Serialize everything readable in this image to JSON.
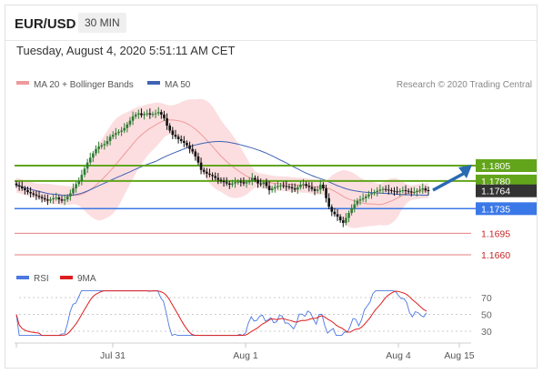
{
  "header": {
    "pair": "EUR/USD",
    "timeframe": "30 MIN",
    "datetime": "Tuesday, August 4, 2020 5:51:11 AM CET"
  },
  "legend": {
    "ma20_bb": "MA 20 + Bollinger Bands",
    "ma50": "MA 50",
    "credit": "Research © 2020 Trading Central",
    "rsi": "RSI",
    "ma9": "9MA"
  },
  "colors": {
    "up_candle": "#2e7d32",
    "down_candle": "#111111",
    "bollinger_fill": "#fbd3d6",
    "ma20": "#ef9a9a",
    "ma50": "#3f63b5",
    "resistance": "#62a51b",
    "support": "#3b78e7",
    "target": "#e05555",
    "current": "#333333",
    "arrow": "#2a6ab1",
    "rsi_line": "#4a78e0",
    "rsi_ma": "#dd1e1e"
  },
  "chart_data": [
    {
      "type": "candlestick",
      "title": "EUR/USD 30 MIN",
      "x_ticks": [
        "Jul 31",
        "Aug 1",
        "Aug 4",
        "Aug 15"
      ],
      "price_levels": [
        {
          "label": "1.1805",
          "value": 1.1805,
          "kind": "resistance"
        },
        {
          "label": "1.1780",
          "value": 1.178,
          "kind": "resistance"
        },
        {
          "label": "1.1764",
          "value": 1.1764,
          "kind": "current"
        },
        {
          "label": "1.1735",
          "value": 1.1735,
          "kind": "support"
        },
        {
          "label": "1.1695",
          "value": 1.1695,
          "kind": "target"
        },
        {
          "label": "1.1660",
          "value": 1.166,
          "kind": "target"
        }
      ],
      "ylim": [
        1.164,
        1.1905
      ],
      "closes": [
        1.1773,
        1.1771,
        1.1768,
        1.1765,
        1.1762,
        1.176,
        1.1758,
        1.1756,
        1.1754,
        1.1752,
        1.175,
        1.1748,
        1.175,
        1.1752,
        1.1753,
        1.175,
        1.1748,
        1.175,
        1.1755,
        1.176,
        1.1768,
        1.1775,
        1.178,
        1.179,
        1.18,
        1.181,
        1.1818,
        1.1825,
        1.1832,
        1.1836,
        1.1838,
        1.184,
        1.1845,
        1.1852,
        1.1855,
        1.1858,
        1.186,
        1.1862,
        1.1866,
        1.1872,
        1.1878,
        1.1885,
        1.1888,
        1.189,
        1.1887,
        1.1889,
        1.189,
        1.1888,
        1.1889,
        1.189,
        1.1892,
        1.1888,
        1.1882,
        1.187,
        1.1862,
        1.1855,
        1.1852,
        1.1848,
        1.1845,
        1.1842,
        1.1838,
        1.1832,
        1.1828,
        1.182,
        1.181,
        1.1798,
        1.1795,
        1.1792,
        1.179,
        1.1788,
        1.1785,
        1.1782,
        1.178,
        1.1778,
        1.1776,
        1.1774,
        1.1776,
        1.1778,
        1.1779,
        1.1778,
        1.1776,
        1.1778,
        1.178,
        1.1785,
        1.1782,
        1.1776,
        1.1775,
        1.1778,
        1.1772,
        1.1765,
        1.1768,
        1.177,
        1.1772,
        1.1773,
        1.1772,
        1.1771,
        1.177,
        1.1768,
        1.1766,
        1.177,
        1.1774,
        1.1775,
        1.1772,
        1.177,
        1.1767,
        1.1764,
        1.1766,
        1.1774,
        1.1768,
        1.1752,
        1.1738,
        1.173,
        1.1726,
        1.1722,
        1.1716,
        1.1712,
        1.172,
        1.1728,
        1.1736,
        1.1742,
        1.1748,
        1.175,
        1.1752,
        1.1755,
        1.1758,
        1.176,
        1.1762,
        1.1764,
        1.1766,
        1.1767,
        1.1766,
        1.1765,
        1.1764,
        1.1763,
        1.1762,
        1.1764,
        1.1765,
        1.1764,
        1.1763,
        1.1762,
        1.1762,
        1.1764,
        1.1766,
        1.1768,
        1.1765,
        1.1764
      ]
    },
    {
      "type": "line",
      "title": "RSI",
      "yticks": [
        70,
        50,
        30
      ],
      "ylim": [
        20,
        80
      ]
    }
  ]
}
